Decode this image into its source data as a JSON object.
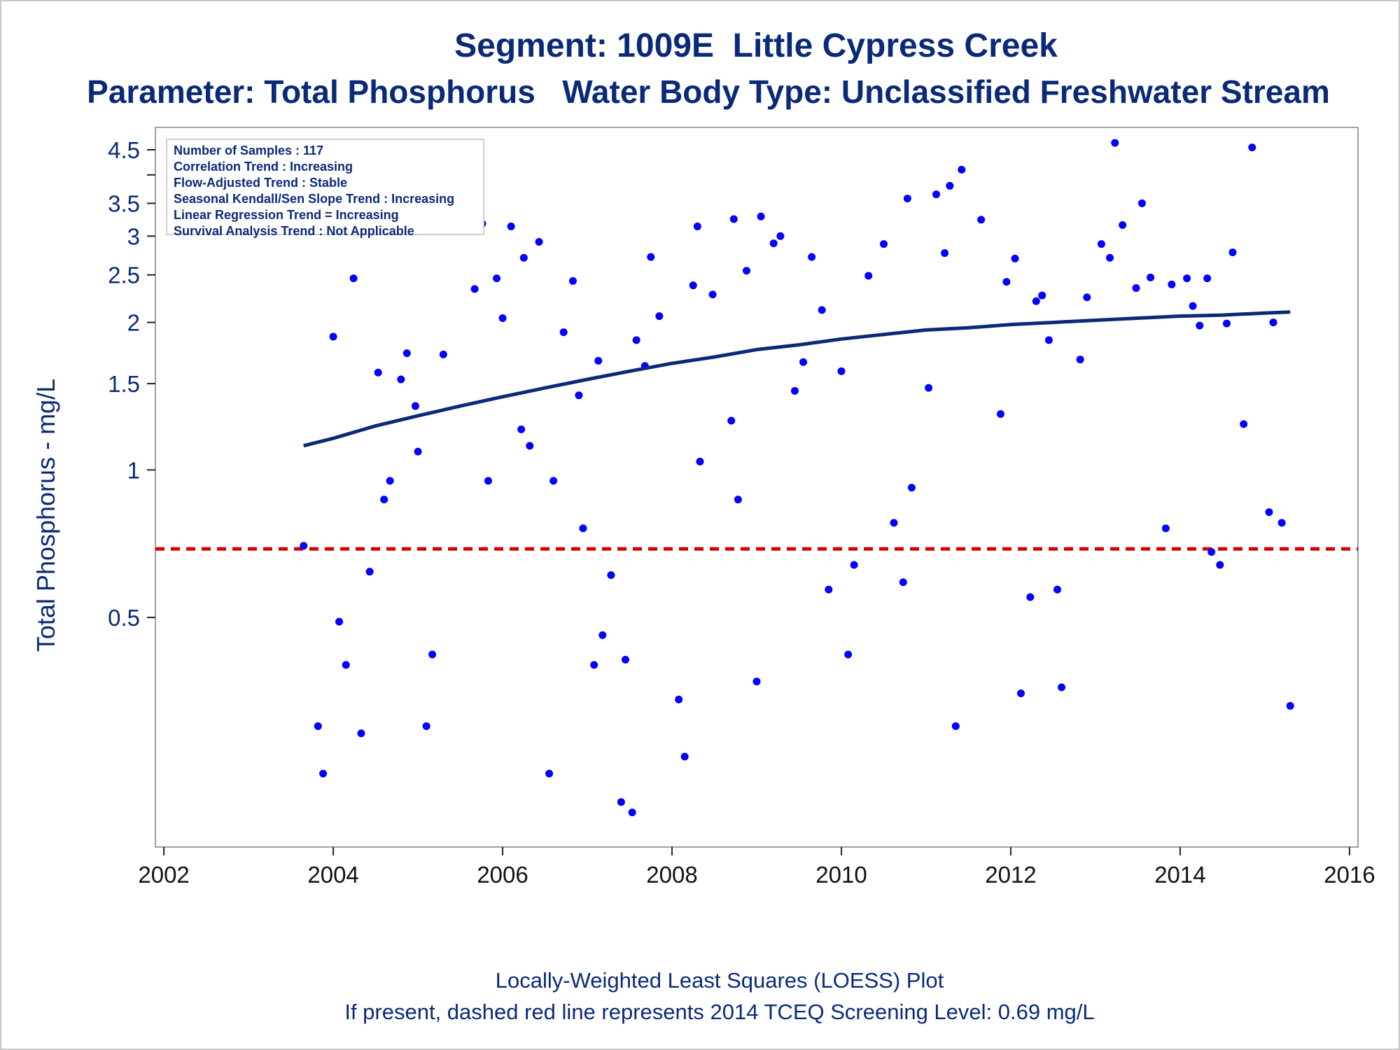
{
  "title": "Segment: 1009E  Little Cypress Creek",
  "subtitle": "Parameter: Total Phosphorus   Water Body Type: Unclassified Freshwater Stream",
  "footnotes": [
    "Locally-Weighted Least Squares (LOESS) Plot",
    "If present, dashed red line represents 2014 TCEQ Screening Level: 0.69 mg/L"
  ],
  "stats_box": [
    "Number of Samples : 117",
    "Correlation Trend : Increasing",
    "Flow-Adjusted Trend : Stable",
    "Seasonal Kendall/Sen Slope Trend : Increasing",
    "Linear Regression Trend = Increasing",
    "Survival Analysis Trend : Not Applicable"
  ],
  "colors": {
    "text": "#0a2a78",
    "points": "#0000ff",
    "loess": "#0a2a78",
    "screening_line": "#d40000",
    "frame": "#a0a0a0"
  },
  "chart_data": {
    "type": "scatter",
    "ylabel": "Total Phosphorus - mg/L",
    "xlabel": "",
    "y_scale": "log",
    "xlim": [
      2001.9,
      2016.1
    ],
    "ylim": [
      0.17,
      5.0
    ],
    "x_ticks": [
      2002,
      2004,
      2006,
      2008,
      2010,
      2012,
      2014,
      2016
    ],
    "y_ticks": [
      0.5,
      1,
      1.5,
      2,
      2.5,
      3,
      3.5,
      4.5
    ],
    "y_minor_ticks": [
      4
    ],
    "grid": false,
    "screening_level": 0.69,
    "series": [
      {
        "kind": "points",
        "points": [
          [
            2003.65,
            0.7
          ],
          [
            2003.82,
            0.3
          ],
          [
            2003.88,
            0.24
          ],
          [
            2004.0,
            1.87
          ],
          [
            2004.07,
            0.49
          ],
          [
            2004.15,
            0.4
          ],
          [
            2004.24,
            2.46
          ],
          [
            2004.33,
            0.29
          ],
          [
            2004.43,
            0.62
          ],
          [
            2004.53,
            1.58
          ],
          [
            2004.6,
            0.87
          ],
          [
            2004.67,
            0.95
          ],
          [
            2004.8,
            1.53
          ],
          [
            2004.87,
            1.73
          ],
          [
            2004.97,
            1.35
          ],
          [
            2005.0,
            1.09
          ],
          [
            2005.1,
            0.3
          ],
          [
            2005.17,
            0.42
          ],
          [
            2005.3,
            1.72
          ],
          [
            2005.4,
            3.45
          ],
          [
            2005.67,
            2.34
          ],
          [
            2005.76,
            3.18
          ],
          [
            2005.83,
            0.95
          ],
          [
            2005.93,
            2.46
          ],
          [
            2006.0,
            2.04
          ],
          [
            2006.1,
            3.14
          ],
          [
            2006.22,
            1.21
          ],
          [
            2006.25,
            2.71
          ],
          [
            2006.32,
            1.12
          ],
          [
            2006.43,
            2.92
          ],
          [
            2006.55,
            0.24
          ],
          [
            2006.6,
            0.95
          ],
          [
            2006.72,
            1.91
          ],
          [
            2006.83,
            2.43
          ],
          [
            2006.9,
            1.42
          ],
          [
            2006.95,
            0.76
          ],
          [
            2007.08,
            0.4
          ],
          [
            2007.13,
            1.67
          ],
          [
            2007.18,
            0.46
          ],
          [
            2007.28,
            0.61
          ],
          [
            2007.4,
            0.21
          ],
          [
            2007.45,
            0.41
          ],
          [
            2007.53,
            0.2
          ],
          [
            2007.58,
            1.84
          ],
          [
            2007.68,
            1.63
          ],
          [
            2007.75,
            2.72
          ],
          [
            2007.85,
            2.06
          ],
          [
            2008.08,
            0.34
          ],
          [
            2008.15,
            0.26
          ],
          [
            2008.25,
            2.38
          ],
          [
            2008.3,
            3.14
          ],
          [
            2008.33,
            1.04
          ],
          [
            2008.48,
            2.28
          ],
          [
            2008.7,
            1.26
          ],
          [
            2008.73,
            3.25
          ],
          [
            2008.78,
            0.87
          ],
          [
            2008.88,
            2.55
          ],
          [
            2009.0,
            0.37
          ],
          [
            2009.05,
            3.29
          ],
          [
            2009.2,
            2.9
          ],
          [
            2009.28,
            3.0
          ],
          [
            2009.45,
            1.45
          ],
          [
            2009.55,
            1.66
          ],
          [
            2009.65,
            2.72
          ],
          [
            2009.77,
            2.12
          ],
          [
            2009.85,
            0.57
          ],
          [
            2010.0,
            1.59
          ],
          [
            2010.08,
            0.42
          ],
          [
            2010.15,
            0.64
          ],
          [
            2010.32,
            2.49
          ],
          [
            2010.5,
            2.89
          ],
          [
            2010.62,
            0.78
          ],
          [
            2010.73,
            0.59
          ],
          [
            2010.78,
            3.58
          ],
          [
            2010.83,
            0.92
          ],
          [
            2011.03,
            1.47
          ],
          [
            2011.12,
            3.65
          ],
          [
            2011.22,
            2.77
          ],
          [
            2011.28,
            3.8
          ],
          [
            2011.35,
            0.3
          ],
          [
            2011.42,
            4.1
          ],
          [
            2011.65,
            3.24
          ],
          [
            2011.88,
            1.3
          ],
          [
            2011.95,
            2.42
          ],
          [
            2012.05,
            2.7
          ],
          [
            2012.12,
            0.35
          ],
          [
            2012.23,
            0.55
          ],
          [
            2012.3,
            2.21
          ],
          [
            2012.37,
            2.27
          ],
          [
            2012.45,
            1.84
          ],
          [
            2012.55,
            0.57
          ],
          [
            2012.6,
            0.36
          ],
          [
            2012.82,
            1.68
          ],
          [
            2012.9,
            2.25
          ],
          [
            2013.07,
            2.89
          ],
          [
            2013.17,
            2.71
          ],
          [
            2013.23,
            4.65
          ],
          [
            2013.32,
            3.16
          ],
          [
            2013.48,
            2.35
          ],
          [
            2013.55,
            3.5
          ],
          [
            2013.65,
            2.47
          ],
          [
            2013.83,
            0.76
          ],
          [
            2013.9,
            2.39
          ],
          [
            2014.08,
            2.46
          ],
          [
            2014.15,
            2.16
          ],
          [
            2014.23,
            1.97
          ],
          [
            2014.32,
            2.46
          ],
          [
            2014.37,
            0.68
          ],
          [
            2014.47,
            0.64
          ],
          [
            2014.55,
            1.99
          ],
          [
            2014.62,
            2.78
          ],
          [
            2014.75,
            1.24
          ],
          [
            2014.85,
            4.55
          ],
          [
            2015.05,
            0.82
          ],
          [
            2015.1,
            2.0
          ],
          [
            2015.2,
            0.78
          ],
          [
            2015.3,
            0.33
          ]
        ]
      },
      {
        "kind": "loess",
        "points": [
          [
            2003.65,
            1.12
          ],
          [
            2004.0,
            1.16
          ],
          [
            2004.5,
            1.23
          ],
          [
            2005.0,
            1.29
          ],
          [
            2005.5,
            1.35
          ],
          [
            2006.0,
            1.41
          ],
          [
            2006.5,
            1.47
          ],
          [
            2007.0,
            1.53
          ],
          [
            2007.5,
            1.59
          ],
          [
            2008.0,
            1.65
          ],
          [
            2008.5,
            1.7
          ],
          [
            2009.0,
            1.76
          ],
          [
            2009.5,
            1.8
          ],
          [
            2010.0,
            1.85
          ],
          [
            2010.5,
            1.89
          ],
          [
            2011.0,
            1.93
          ],
          [
            2011.5,
            1.95
          ],
          [
            2012.0,
            1.98
          ],
          [
            2012.5,
            2.0
          ],
          [
            2013.0,
            2.02
          ],
          [
            2013.5,
            2.04
          ],
          [
            2014.0,
            2.06
          ],
          [
            2014.5,
            2.07
          ],
          [
            2015.0,
            2.09
          ],
          [
            2015.3,
            2.1
          ]
        ]
      }
    ]
  }
}
